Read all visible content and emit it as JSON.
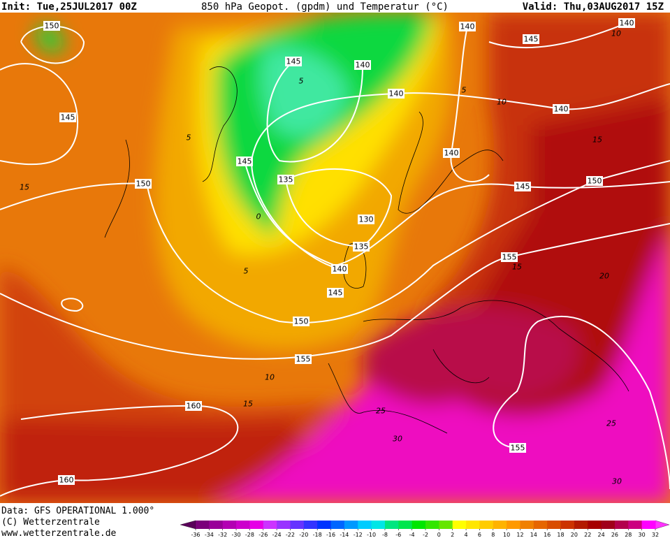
{
  "header": {
    "init": "Init: Tue,25JUL2017 00Z",
    "title": "850 hPa Geopot. (gpdm) und Temperatur (°C)",
    "valid": "Valid: Thu,03AUG2017 15Z"
  },
  "geopotential_labels": [
    150,
    145,
    150,
    145,
    140,
    140,
    145,
    135,
    130,
    135,
    140,
    145,
    150,
    155,
    160,
    160,
    155,
    155,
    145,
    150,
    140,
    140,
    140,
    145,
    140
  ],
  "temperature_labels": [
    5,
    5,
    0,
    10,
    15,
    20,
    25,
    30,
    30,
    25,
    10,
    15,
    5,
    15,
    5,
    15,
    10
  ],
  "footer": {
    "data": "Data: GFS OPERATIONAL 1.000°",
    "copyright": "(C) Wetterzentrale",
    "url": "www.wetterzentrale.de"
  },
  "colorbar": {
    "ticks": [
      -36,
      -34,
      -32,
      -30,
      -28,
      -26,
      -24,
      -22,
      -20,
      -18,
      -16,
      -14,
      -12,
      -10,
      -8,
      -6,
      -4,
      -2,
      0,
      2,
      4,
      6,
      8,
      10,
      12,
      14,
      16,
      18,
      20,
      22,
      24,
      26,
      28,
      30,
      32
    ],
    "colors": [
      "#5a005a",
      "#7a007a",
      "#990099",
      "#b300b3",
      "#cc00cc",
      "#e600e6",
      "#cc33ff",
      "#9933ff",
      "#6633ff",
      "#3333ff",
      "#0033ff",
      "#0066ff",
      "#0099ff",
      "#00ccff",
      "#00e6e6",
      "#00e680",
      "#00e64d",
      "#00e600",
      "#33e600",
      "#66e600",
      "#ffff00",
      "#ffe600",
      "#ffcc00",
      "#ffb300",
      "#ff9900",
      "#f08000",
      "#e66600",
      "#d94d00",
      "#cc3300",
      "#b31a00",
      "#a60000",
      "#a0001a",
      "#b3004d",
      "#cc0080",
      "#ff00ff",
      "#ff33ff"
    ]
  }
}
